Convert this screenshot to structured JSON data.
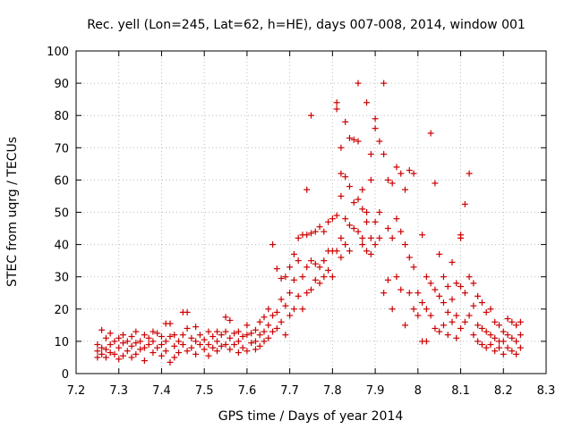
{
  "chart_data": {
    "type": "scatter",
    "title": "Rec. yell (Lon=245, Lat=62, h=HE), days 007-008, 2014, window 001",
    "xlabel": "GPS time / Days of year 2014",
    "ylabel": "STEC from uqrg / TECUs",
    "xlim": [
      7.2,
      8.3
    ],
    "ylim": [
      0,
      100
    ],
    "x_ticks": [
      "7.2",
      "7.3",
      "7.4",
      "7.5",
      "7.6",
      "7.7",
      "7.8",
      "7.9",
      "8",
      "8.1",
      "8.2",
      "8.3"
    ],
    "y_ticks": [
      "0",
      "10",
      "20",
      "30",
      "40",
      "50",
      "60",
      "70",
      "80",
      "90",
      "100"
    ],
    "grid": true,
    "marker": "+",
    "color": "#cc0000",
    "points": [
      [
        7.25,
        9
      ],
      [
        7.25,
        7
      ],
      [
        7.25,
        5
      ],
      [
        7.26,
        8
      ],
      [
        7.26,
        13.5
      ],
      [
        7.26,
        6
      ],
      [
        7.27,
        11
      ],
      [
        7.27,
        7.5
      ],
      [
        7.27,
        5
      ],
      [
        7.28,
        12.5
      ],
      [
        7.28,
        9
      ],
      [
        7.28,
        6.5
      ],
      [
        7.29,
        10
      ],
      [
        7.29,
        6
      ],
      [
        7.3,
        11
      ],
      [
        7.3,
        8
      ],
      [
        7.3,
        4.5
      ],
      [
        7.31,
        12
      ],
      [
        7.31,
        9.5
      ],
      [
        7.31,
        5.5
      ],
      [
        7.32,
        10
      ],
      [
        7.32,
        7
      ],
      [
        7.33,
        11.5
      ],
      [
        7.33,
        8.5
      ],
      [
        7.33,
        5
      ],
      [
        7.34,
        13
      ],
      [
        7.34,
        9.5
      ],
      [
        7.34,
        6
      ],
      [
        7.35,
        10
      ],
      [
        7.35,
        7.5
      ],
      [
        7.36,
        12
      ],
      [
        7.36,
        8
      ],
      [
        7.36,
        4
      ],
      [
        7.37,
        11
      ],
      [
        7.37,
        9
      ],
      [
        7.38,
        13
      ],
      [
        7.38,
        10
      ],
      [
        7.38,
        6.5
      ],
      [
        7.39,
        12.5
      ],
      [
        7.39,
        8
      ],
      [
        7.4,
        11.5
      ],
      [
        7.4,
        9
      ],
      [
        7.4,
        5.5
      ],
      [
        7.41,
        15.5
      ],
      [
        7.41,
        10
      ],
      [
        7.41,
        7
      ],
      [
        7.42,
        15.5
      ],
      [
        7.42,
        11.5
      ],
      [
        7.42,
        3.5
      ],
      [
        7.43,
        12
      ],
      [
        7.43,
        8.5
      ],
      [
        7.43,
        5
      ],
      [
        7.44,
        10
      ],
      [
        7.44,
        6.5
      ],
      [
        7.45,
        19
      ],
      [
        7.45,
        12
      ],
      [
        7.45,
        9
      ],
      [
        7.46,
        19
      ],
      [
        7.46,
        14
      ],
      [
        7.46,
        7
      ],
      [
        7.47,
        11
      ],
      [
        7.47,
        8
      ],
      [
        7.48,
        14.5
      ],
      [
        7.48,
        10
      ],
      [
        7.48,
        6
      ],
      [
        7.49,
        12
      ],
      [
        7.49,
        9
      ],
      [
        7.5,
        10.5
      ],
      [
        7.5,
        7.5
      ],
      [
        7.51,
        13
      ],
      [
        7.51,
        9
      ],
      [
        7.51,
        5.5
      ],
      [
        7.52,
        11.5
      ],
      [
        7.52,
        8
      ],
      [
        7.53,
        13
      ],
      [
        7.53,
        10
      ],
      [
        7.53,
        7
      ],
      [
        7.54,
        12
      ],
      [
        7.54,
        8.5
      ],
      [
        7.55,
        17.5
      ],
      [
        7.55,
        13
      ],
      [
        7.55,
        9
      ],
      [
        7.56,
        16.5
      ],
      [
        7.56,
        11
      ],
      [
        7.56,
        7.5
      ],
      [
        7.57,
        12.5
      ],
      [
        7.57,
        9
      ],
      [
        7.58,
        13
      ],
      [
        7.58,
        10
      ],
      [
        7.58,
        6.5
      ],
      [
        7.59,
        11.5
      ],
      [
        7.59,
        8
      ],
      [
        7.6,
        15
      ],
      [
        7.6,
        12
      ],
      [
        7.6,
        7
      ],
      [
        7.61,
        12.5
      ],
      [
        7.61,
        9.5
      ],
      [
        7.62,
        13.5
      ],
      [
        7.62,
        10
      ],
      [
        7.62,
        7.5
      ],
      [
        7.63,
        16
      ],
      [
        7.63,
        12
      ],
      [
        7.63,
        8.5
      ],
      [
        7.64,
        17.5
      ],
      [
        7.64,
        13
      ],
      [
        7.64,
        10
      ],
      [
        7.65,
        20
      ],
      [
        7.65,
        15
      ],
      [
        7.65,
        11
      ],
      [
        7.66,
        40
      ],
      [
        7.66,
        18
      ],
      [
        7.66,
        13
      ],
      [
        7.67,
        32.5
      ],
      [
        7.67,
        19
      ],
      [
        7.67,
        14
      ],
      [
        7.68,
        29.5
      ],
      [
        7.68,
        23
      ],
      [
        7.68,
        16
      ],
      [
        7.69,
        30
      ],
      [
        7.69,
        21
      ],
      [
        7.69,
        12
      ],
      [
        7.7,
        33
      ],
      [
        7.7,
        25
      ],
      [
        7.7,
        18
      ],
      [
        7.71,
        37
      ],
      [
        7.71,
        29
      ],
      [
        7.71,
        20
      ],
      [
        7.72,
        42
      ],
      [
        7.72,
        35
      ],
      [
        7.72,
        24
      ],
      [
        7.73,
        43
      ],
      [
        7.73,
        30
      ],
      [
        7.73,
        20
      ],
      [
        7.74,
        57
      ],
      [
        7.74,
        43
      ],
      [
        7.74,
        33
      ],
      [
        7.74,
        25
      ],
      [
        7.75,
        80
      ],
      [
        7.75,
        43.5
      ],
      [
        7.75,
        35
      ],
      [
        7.75,
        26
      ],
      [
        7.76,
        44
      ],
      [
        7.76,
        34
      ],
      [
        7.76,
        29
      ],
      [
        7.77,
        45.5
      ],
      [
        7.77,
        33
      ],
      [
        7.77,
        28
      ],
      [
        7.78,
        44
      ],
      [
        7.78,
        35
      ],
      [
        7.78,
        30
      ],
      [
        7.79,
        47
      ],
      [
        7.79,
        38
      ],
      [
        7.79,
        32
      ],
      [
        7.8,
        48
      ],
      [
        7.8,
        38
      ],
      [
        7.8,
        30
      ],
      [
        7.81,
        84
      ],
      [
        7.81,
        82
      ],
      [
        7.81,
        49
      ],
      [
        7.81,
        38
      ],
      [
        7.82,
        70
      ],
      [
        7.82,
        62
      ],
      [
        7.82,
        55
      ],
      [
        7.82,
        42
      ],
      [
        7.82,
        36
      ],
      [
        7.83,
        78
      ],
      [
        7.83,
        61
      ],
      [
        7.83,
        48
      ],
      [
        7.83,
        40
      ],
      [
        7.84,
        73
      ],
      [
        7.84,
        58
      ],
      [
        7.84,
        46
      ],
      [
        7.84,
        38
      ],
      [
        7.85,
        72.5
      ],
      [
        7.85,
        53
      ],
      [
        7.85,
        45
      ],
      [
        7.86,
        90
      ],
      [
        7.86,
        72
      ],
      [
        7.86,
        54
      ],
      [
        7.86,
        44
      ],
      [
        7.87,
        57
      ],
      [
        7.87,
        51
      ],
      [
        7.87,
        42
      ],
      [
        7.87,
        40
      ],
      [
        7.88,
        84
      ],
      [
        7.88,
        50
      ],
      [
        7.88,
        47
      ],
      [
        7.88,
        38
      ],
      [
        7.89,
        68
      ],
      [
        7.89,
        60
      ],
      [
        7.89,
        42
      ],
      [
        7.89,
        37
      ],
      [
        7.9,
        79
      ],
      [
        7.9,
        76
      ],
      [
        7.9,
        47
      ],
      [
        7.9,
        40
      ],
      [
        7.91,
        72
      ],
      [
        7.91,
        50
      ],
      [
        7.91,
        42
      ],
      [
        7.92,
        90
      ],
      [
        7.92,
        68
      ],
      [
        7.92,
        25
      ],
      [
        7.93,
        60
      ],
      [
        7.93,
        45
      ],
      [
        7.93,
        29
      ],
      [
        7.94,
        59
      ],
      [
        7.94,
        42
      ],
      [
        7.94,
        20
      ],
      [
        7.95,
        64
      ],
      [
        7.95,
        48
      ],
      [
        7.95,
        30
      ],
      [
        7.96,
        62
      ],
      [
        7.96,
        44
      ],
      [
        7.96,
        26
      ],
      [
        7.97,
        57
      ],
      [
        7.97,
        40
      ],
      [
        7.97,
        15
      ],
      [
        7.98,
        63
      ],
      [
        7.98,
        36
      ],
      [
        7.98,
        25
      ],
      [
        7.99,
        62
      ],
      [
        7.99,
        33
      ],
      [
        7.99,
        20
      ],
      [
        8.0,
        25
      ],
      [
        8.0,
        18
      ],
      [
        8.01,
        43
      ],
      [
        8.01,
        22
      ],
      [
        8.01,
        10
      ],
      [
        8.02,
        30
      ],
      [
        8.02,
        20
      ],
      [
        8.02,
        10
      ],
      [
        8.03,
        74.5
      ],
      [
        8.03,
        28
      ],
      [
        8.03,
        18
      ],
      [
        8.04,
        59
      ],
      [
        8.04,
        26
      ],
      [
        8.04,
        14
      ],
      [
        8.05,
        37
      ],
      [
        8.05,
        24
      ],
      [
        8.05,
        13
      ],
      [
        8.06,
        30
      ],
      [
        8.06,
        22
      ],
      [
        8.06,
        15
      ],
      [
        8.07,
        27
      ],
      [
        8.07,
        19
      ],
      [
        8.07,
        12
      ],
      [
        8.08,
        34.5
      ],
      [
        8.08,
        23
      ],
      [
        8.08,
        16
      ],
      [
        8.09,
        28
      ],
      [
        8.09,
        18
      ],
      [
        8.09,
        11
      ],
      [
        8.1,
        43
      ],
      [
        8.1,
        42
      ],
      [
        8.1,
        27
      ],
      [
        8.1,
        14
      ],
      [
        8.11,
        52.5
      ],
      [
        8.11,
        25
      ],
      [
        8.11,
        16
      ],
      [
        8.12,
        62
      ],
      [
        8.12,
        30
      ],
      [
        8.12,
        18
      ],
      [
        8.13,
        28
      ],
      [
        8.13,
        21
      ],
      [
        8.13,
        12
      ],
      [
        8.14,
        24
      ],
      [
        8.14,
        15
      ],
      [
        8.14,
        10
      ],
      [
        8.15,
        22
      ],
      [
        8.15,
        14
      ],
      [
        8.15,
        9
      ],
      [
        8.16,
        19
      ],
      [
        8.16,
        13
      ],
      [
        8.16,
        8
      ],
      [
        8.17,
        20
      ],
      [
        8.17,
        12
      ],
      [
        8.17,
        9
      ],
      [
        8.18,
        16
      ],
      [
        8.18,
        11
      ],
      [
        8.18,
        7
      ],
      [
        8.19,
        15
      ],
      [
        8.19,
        10
      ],
      [
        8.19,
        8
      ],
      [
        8.2,
        13
      ],
      [
        8.2,
        10
      ],
      [
        8.2,
        6
      ],
      [
        8.21,
        17
      ],
      [
        8.21,
        12
      ],
      [
        8.21,
        8
      ],
      [
        8.22,
        16
      ],
      [
        8.22,
        11
      ],
      [
        8.22,
        7
      ],
      [
        8.23,
        15
      ],
      [
        8.23,
        10
      ],
      [
        8.23,
        6
      ],
      [
        8.24,
        16
      ],
      [
        8.24,
        12
      ],
      [
        8.24,
        8
      ]
    ]
  }
}
